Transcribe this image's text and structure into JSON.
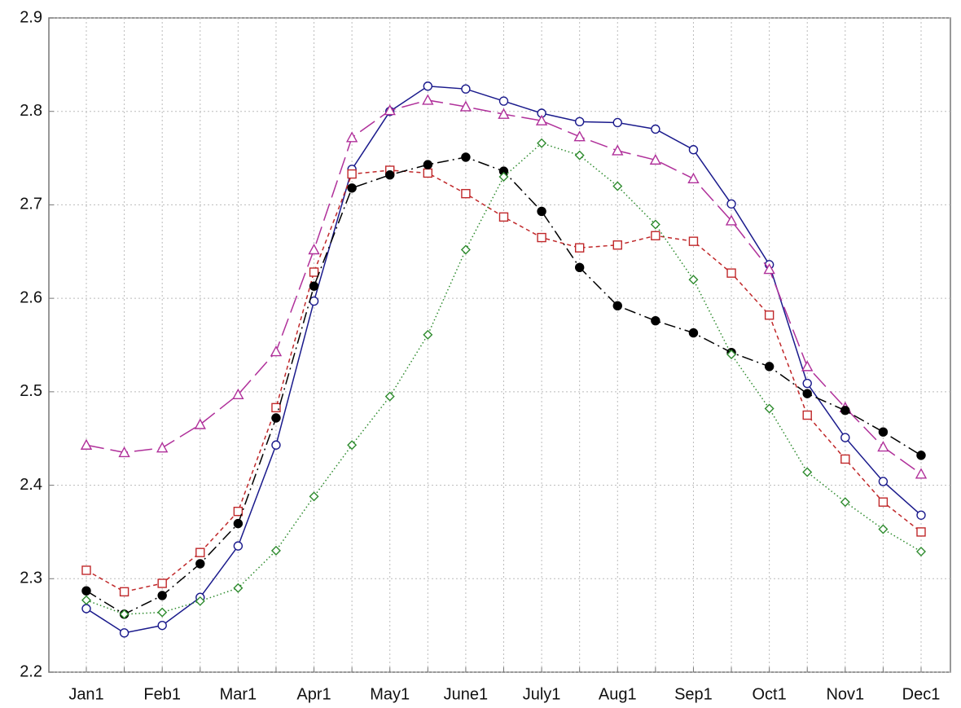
{
  "chart_data": {
    "type": "line",
    "categories": [
      "Jan1",
      null,
      "Feb1",
      null,
      "Mar1",
      null,
      "Apr1",
      null,
      "May1",
      null,
      "June1",
      null,
      "July1",
      null,
      "Aug1",
      null,
      "Sep1",
      null,
      "Oct1",
      null,
      "Nov1",
      null,
      "Dec1"
    ],
    "ylim": [
      2.2,
      2.9
    ],
    "yticks": [
      2.2,
      2.3,
      2.4,
      2.5,
      2.6,
      2.7,
      2.8,
      2.9
    ],
    "grid": true,
    "series": [
      {
        "color": "#1a1a8c",
        "marker": "circle",
        "dash": "solid",
        "values": [
          2.268,
          2.242,
          2.25,
          2.28,
          2.335,
          2.443,
          2.597,
          2.738,
          2.8,
          2.827,
          2.824,
          2.811,
          2.798,
          2.789,
          2.788,
          2.781,
          2.759,
          2.701,
          2.636,
          2.509,
          2.451,
          2.404,
          2.368
        ]
      },
      {
        "color": "#b0309a",
        "marker": "triangle",
        "dash": "long",
        "values": [
          2.443,
          2.435,
          2.44,
          2.465,
          2.497,
          2.543,
          2.652,
          2.772,
          2.801,
          2.812,
          2.805,
          2.797,
          2.79,
          2.773,
          2.758,
          2.748,
          2.728,
          2.683,
          2.631,
          2.527,
          2.483,
          2.441,
          2.412
        ]
      },
      {
        "color": "#c0282a",
        "marker": "square",
        "dash": "short",
        "values": [
          2.309,
          2.286,
          2.295,
          2.328,
          2.372,
          2.483,
          2.628,
          2.733,
          2.737,
          2.734,
          2.712,
          2.687,
          2.665,
          2.654,
          2.657,
          2.667,
          2.661,
          2.627,
          2.582,
          2.475,
          2.428,
          2.382,
          2.35
        ]
      },
      {
        "color": "#000000",
        "marker": "dot",
        "dash": "dashdot",
        "values": [
          2.287,
          2.262,
          2.282,
          2.316,
          2.359,
          2.472,
          2.613,
          2.718,
          2.732,
          2.743,
          2.751,
          2.736,
          2.693,
          2.633,
          2.592,
          2.576,
          2.563,
          2.542,
          2.527,
          2.498,
          2.48,
          2.457,
          2.432
        ]
      },
      {
        "color": "#2e8b2e",
        "marker": "diamond",
        "dash": "dotted",
        "values": [
          2.277,
          2.262,
          2.264,
          2.276,
          2.29,
          2.33,
          2.388,
          2.443,
          2.495,
          2.561,
          2.652,
          2.73,
          2.766,
          2.753,
          2.72,
          2.679,
          2.62,
          2.54,
          2.482,
          2.414,
          2.382,
          2.353,
          2.329
        ]
      }
    ]
  }
}
